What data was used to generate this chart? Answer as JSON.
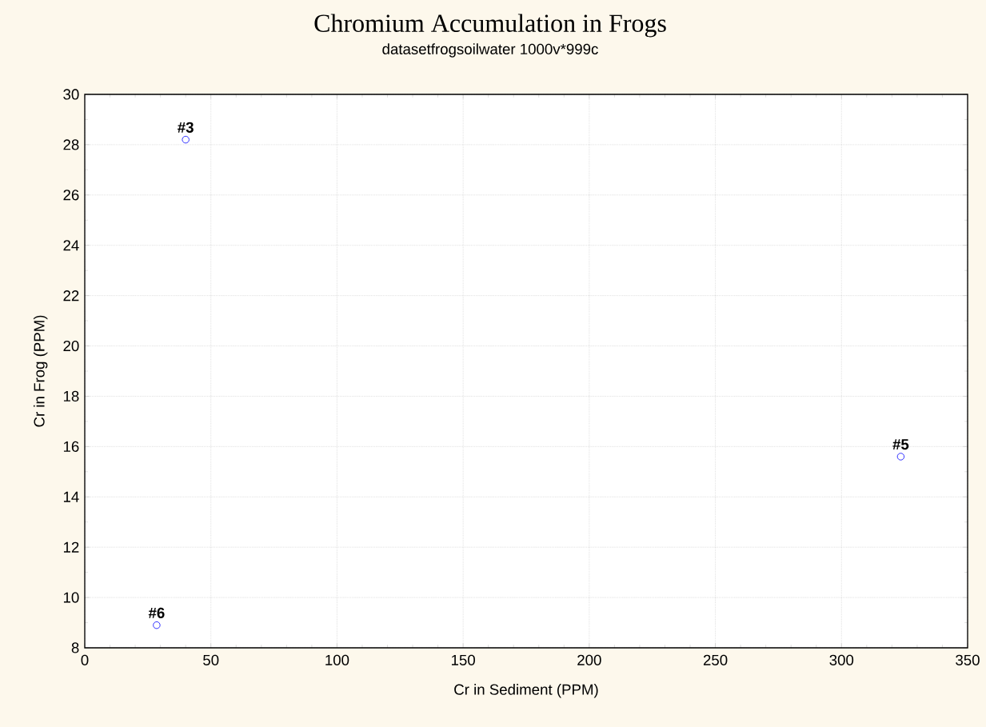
{
  "chart_data": {
    "type": "scatter",
    "title": "Chromium Accumulation in Frogs",
    "subtitle": "datasetfrogsoilwater 1000v*999c",
    "xlabel": "Cr in Sediment (PPM)",
    "ylabel": "Cr in Frog (PPM)",
    "series": [
      {
        "color": "#0000ff",
        "x": [
          40,
          323.5,
          28.5
        ],
        "values": [
          28.2,
          15.6,
          8.9
        ]
      }
    ],
    "annotations": [
      {
        "text": "#3",
        "x": 40,
        "y": 28.2
      },
      {
        "text": "#5",
        "x": 323.5,
        "y": 15.6
      },
      {
        "text": "#6",
        "x": 28.5,
        "y": 8.9
      }
    ],
    "xlim": [
      0,
      350
    ],
    "ylim": [
      8,
      30
    ],
    "xticks": [
      0,
      50,
      100,
      150,
      200,
      250,
      300,
      350
    ],
    "yticks": [
      8,
      10,
      12,
      14,
      16,
      18,
      20,
      22,
      24,
      26,
      28,
      30
    ],
    "grid": true,
    "marker": "circle"
  }
}
